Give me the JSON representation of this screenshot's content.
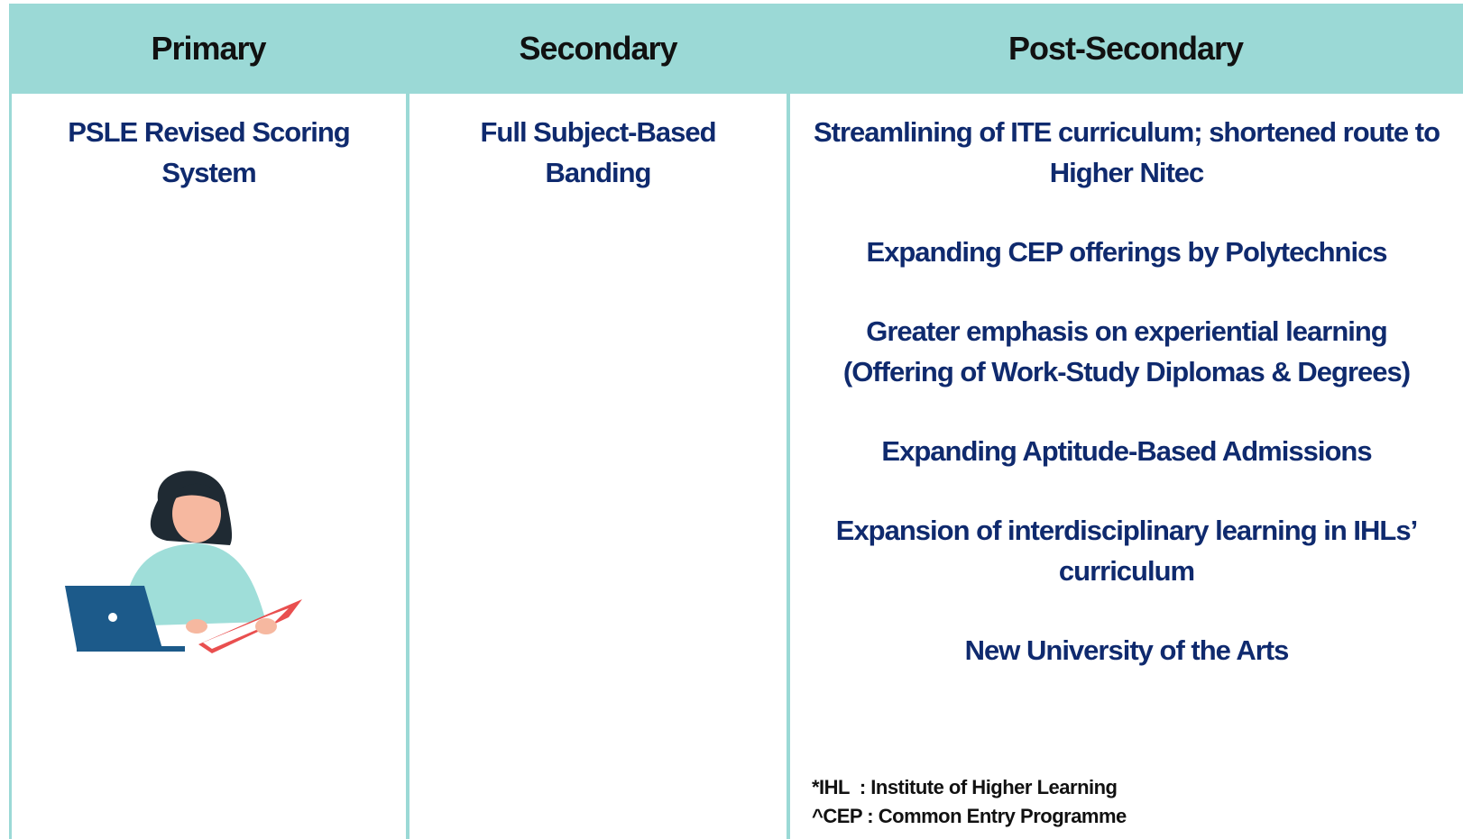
{
  "table": {
    "headers": [
      "Primary",
      "Secondary",
      "Post-Secondary"
    ],
    "columns": [
      [
        "PSLE Revised Scoring System"
      ],
      [
        "Full Subject-Based Banding"
      ],
      [
        "Streamlining of ITE curriculum; shortened route to Higher Nitec",
        "Expanding CEP offerings by Polytechnics",
        "Greater emphasis on experiential learning (Offering of Work-Study Diplomas & Degrees)",
        "Expanding Aptitude-Based Admissions",
        "Expansion of interdisciplinary learning in IHLs’ curriculum",
        "New University of the Arts"
      ]
    ]
  },
  "footnotes": [
    "*IHL  : Institute of Higher Learning",
    "^CEP : Common Entry Programme"
  ]
}
